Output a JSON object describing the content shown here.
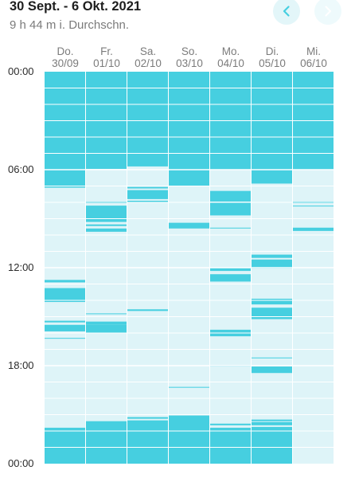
{
  "header": {
    "title": "30 Sept. - 6 Okt. 2021",
    "subtitle": "9 h 44 m i. Durchschn.",
    "prev_icon": "chevron-left-icon",
    "next_icon": "chevron-right-icon"
  },
  "colors": {
    "bar": "#46cfe0",
    "background_cell": "#def4f8",
    "grid": "#ffffff",
    "nav_prev_bg": "#e3f6f9",
    "nav_next_bg": "#eefafc",
    "nav_prev_icon": "#46cfe0",
    "nav_next_icon": "#ffffff"
  },
  "chart_data": {
    "type": "timeline",
    "title": "",
    "y_labels": [
      "00:00",
      "06:00",
      "12:00",
      "18:00",
      "00:00"
    ],
    "y_range_hours": [
      0,
      24
    ],
    "days": [
      {
        "weekday": "Do.",
        "date": "30/09",
        "segments": [
          [
            0.0,
            7.0
          ],
          [
            7.0,
            7.1
          ],
          [
            12.75,
            12.9
          ],
          [
            13.25,
            14.1
          ],
          [
            15.25,
            15.35
          ],
          [
            15.5,
            15.9
          ],
          [
            16.3,
            16.35
          ],
          [
            21.8,
            24.0
          ]
        ]
      },
      {
        "weekday": "Fr.",
        "date": "01/10",
        "segments": [
          [
            0.0,
            5.95
          ],
          [
            7.95,
            8.05
          ],
          [
            8.2,
            9.2
          ],
          [
            9.35,
            9.45
          ],
          [
            9.6,
            9.8
          ],
          [
            14.8,
            14.85
          ],
          [
            15.3,
            15.5
          ],
          [
            15.5,
            16.0
          ],
          [
            21.4,
            24.0
          ]
        ]
      },
      {
        "weekday": "Sa.",
        "date": "02/10",
        "segments": [
          [
            0.0,
            5.8
          ],
          [
            7.05,
            7.15
          ],
          [
            7.25,
            7.8
          ],
          [
            7.9,
            8.0
          ],
          [
            14.55,
            14.65
          ],
          [
            21.15,
            21.25
          ],
          [
            21.35,
            24.0
          ]
        ]
      },
      {
        "weekday": "So.",
        "date": "03/10",
        "segments": [
          [
            0.0,
            7.0
          ],
          [
            9.25,
            9.6
          ],
          [
            19.3,
            19.35
          ],
          [
            21.05,
            24.0
          ]
        ]
      },
      {
        "weekday": "Mo.",
        "date": "04/10",
        "segments": [
          [
            0.0,
            6.0
          ],
          [
            7.3,
            7.95
          ],
          [
            8.0,
            8.8
          ],
          [
            9.55,
            9.6
          ],
          [
            12.0,
            12.2
          ],
          [
            12.4,
            12.85
          ],
          [
            15.8,
            16.2
          ],
          [
            18.0,
            18.05
          ],
          [
            21.55,
            21.65
          ],
          [
            21.8,
            24.0
          ]
        ]
      },
      {
        "weekday": "Di.",
        "date": "05/10",
        "segments": [
          [
            0.0,
            6.85
          ],
          [
            11.2,
            11.4
          ],
          [
            11.5,
            12.05
          ],
          [
            13.9,
            14.25
          ],
          [
            14.45,
            15.15
          ],
          [
            17.5,
            17.55
          ],
          [
            18.05,
            18.45
          ],
          [
            21.3,
            21.4
          ],
          [
            21.45,
            21.65
          ],
          [
            21.75,
            24.0
          ]
        ]
      },
      {
        "weekday": "Mi.",
        "date": "06/10",
        "segments": [
          [
            0.0,
            6.0
          ],
          [
            7.95,
            8.05
          ],
          [
            8.2,
            8.25
          ],
          [
            9.55,
            9.75
          ]
        ]
      }
    ]
  }
}
